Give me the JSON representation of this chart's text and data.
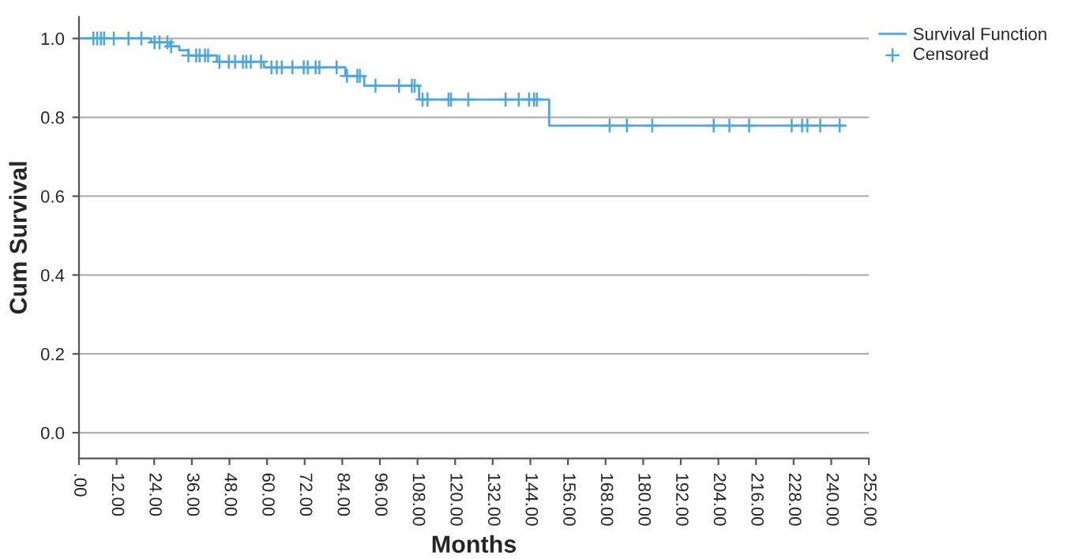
{
  "chart_data": {
    "type": "step",
    "xlabel": "Months",
    "ylabel": "Cum Survival",
    "xlim": [
      0,
      252
    ],
    "ylim": [
      -0.065,
      1.055
    ],
    "xticks": [
      {
        "value": 0,
        "label": ".00"
      },
      {
        "value": 12,
        "label": "12.00"
      },
      {
        "value": 24,
        "label": "24.00"
      },
      {
        "value": 36,
        "label": "36.00"
      },
      {
        "value": 48,
        "label": "48.00"
      },
      {
        "value": 60,
        "label": "60.00"
      },
      {
        "value": 72,
        "label": "72.00"
      },
      {
        "value": 84,
        "label": "84.00"
      },
      {
        "value": 96,
        "label": "96.00"
      },
      {
        "value": 108,
        "label": "108.00"
      },
      {
        "value": 120,
        "label": "120.00"
      },
      {
        "value": 132,
        "label": "132.00"
      },
      {
        "value": 144,
        "label": "144.00"
      },
      {
        "value": 156,
        "label": "156.00"
      },
      {
        "value": 168,
        "label": "168.00"
      },
      {
        "value": 180,
        "label": "180.00"
      },
      {
        "value": 192,
        "label": "192.00"
      },
      {
        "value": 204,
        "label": "204.00"
      },
      {
        "value": 216,
        "label": "216.00"
      },
      {
        "value": 228,
        "label": "228.00"
      },
      {
        "value": 240,
        "label": "240.00"
      },
      {
        "value": 252,
        "label": "252.00"
      }
    ],
    "yticks": [
      {
        "value": 0,
        "label": "0.0"
      },
      {
        "value": 0.2,
        "label": "0.2"
      },
      {
        "value": 0.4,
        "label": "0.4"
      },
      {
        "value": 0.6,
        "label": "0.6"
      },
      {
        "value": 0.8,
        "label": "0.8"
      },
      {
        "value": 1,
        "label": "1.0"
      }
    ],
    "grid": "y",
    "legend": "top right",
    "series": [
      {
        "name": "Survival Function",
        "color": "#4aa8e0",
        "marker": "none",
        "x": [
          0,
          23,
          29,
          32,
          35,
          44,
          59,
          85,
          91,
          108.5,
          150,
          244
        ],
        "values": [
          1,
          0.99,
          0.98,
          0.97,
          0.957,
          0.941,
          0.927,
          0.905,
          0.88,
          0.845,
          0.779,
          0.779
        ]
      },
      {
        "name": "Censored",
        "type": "scatter",
        "color": "#4aa8e0",
        "marker": "cross",
        "x": [
          4.6,
          5.8,
          7.0,
          8.0,
          11.1,
          15.8,
          19.9,
          24.1,
          25.7,
          28.2,
          29.4,
          34.9,
          37.4,
          38.5,
          40.2,
          41.2,
          44.8,
          47.8,
          49.8,
          52.3,
          53.4,
          54.8,
          58.1,
          61.4,
          63.1,
          64.7,
          68.1,
          71.7,
          73.0,
          75.5,
          76.7,
          82.2,
          85.5,
          88.8,
          89.6,
          94.6,
          102.1,
          106.2,
          107.1,
          109.6,
          111.2,
          117.9,
          118.7,
          124.2,
          136.1,
          140.3,
          143.6,
          145.2,
          146.1,
          169.3,
          174.8,
          182.9,
          202.5,
          207.5,
          213.8,
          227.4,
          230.7,
          232.4,
          236.5,
          242.7
        ],
        "values": [
          1,
          1,
          1,
          1,
          1,
          1,
          1,
          0.99,
          0.99,
          0.99,
          0.98,
          0.957,
          0.957,
          0.957,
          0.957,
          0.957,
          0.941,
          0.941,
          0.941,
          0.941,
          0.941,
          0.941,
          0.941,
          0.927,
          0.927,
          0.927,
          0.927,
          0.927,
          0.927,
          0.927,
          0.927,
          0.927,
          0.905,
          0.905,
          0.905,
          0.88,
          0.88,
          0.88,
          0.88,
          0.845,
          0.845,
          0.845,
          0.845,
          0.845,
          0.845,
          0.845,
          0.845,
          0.845,
          0.845,
          0.779,
          0.779,
          0.779,
          0.779,
          0.779,
          0.779,
          0.779,
          0.779,
          0.779,
          0.779,
          0.779
        ]
      }
    ]
  }
}
